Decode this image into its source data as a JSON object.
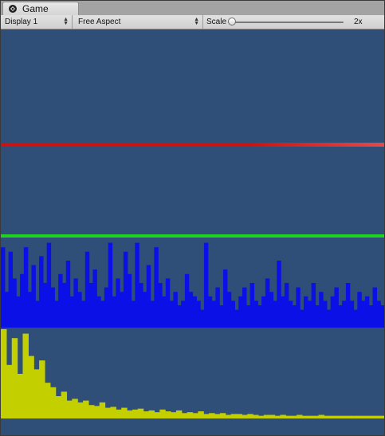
{
  "tab": {
    "title": "Game",
    "icon": "unity-logo-icon"
  },
  "toolbar": {
    "display_value": "Display 1",
    "aspect_value": "Free Aspect",
    "scale_label": "Scale",
    "scale_value": "2x",
    "scale_fraction": 0.0
  },
  "viewport": {
    "background": "#2f4e78",
    "bars": [
      {
        "name": "red",
        "color": "#c81414",
        "color_end": "#e34a4a"
      },
      {
        "name": "green",
        "color": "#1fd21f"
      }
    ],
    "blue_spectrum": {
      "color": "#0a10e6",
      "levels": [
        0.9,
        0.4,
        0.85,
        0.55,
        0.35,
        0.6,
        0.9,
        0.4,
        0.7,
        0.3,
        0.8,
        0.5,
        0.95,
        0.45,
        0.3,
        0.6,
        0.5,
        0.75,
        0.35,
        0.55,
        0.4,
        0.3,
        0.85,
        0.5,
        0.65,
        0.35,
        0.3,
        0.45,
        0.95,
        0.35,
        0.55,
        0.4,
        0.85,
        0.6,
        0.3,
        0.95,
        0.5,
        0.4,
        0.7,
        0.3,
        0.9,
        0.5,
        0.35,
        0.55,
        0.3,
        0.4,
        0.25,
        0.3,
        0.6,
        0.4,
        0.35,
        0.3,
        0.2,
        0.95,
        0.35,
        0.3,
        0.45,
        0.25,
        0.65,
        0.4,
        0.3,
        0.2,
        0.35,
        0.45,
        0.25,
        0.5,
        0.3,
        0.25,
        0.35,
        0.55,
        0.4,
        0.3,
        0.75,
        0.35,
        0.5,
        0.3,
        0.25,
        0.45,
        0.2,
        0.35,
        0.3,
        0.5,
        0.25,
        0.4,
        0.3,
        0.2,
        0.35,
        0.45,
        0.25,
        0.3,
        0.5,
        0.3,
        0.2,
        0.4,
        0.3,
        0.35,
        0.25,
        0.45,
        0.3,
        0.25
      ]
    },
    "yellow_spectrum": {
      "color": "#c4cf00",
      "levels": [
        1.0,
        0.6,
        0.9,
        0.5,
        0.95,
        0.7,
        0.55,
        0.65,
        0.4,
        0.35,
        0.25,
        0.3,
        0.2,
        0.22,
        0.18,
        0.2,
        0.15,
        0.14,
        0.18,
        0.12,
        0.13,
        0.1,
        0.12,
        0.09,
        0.1,
        0.11,
        0.08,
        0.09,
        0.07,
        0.1,
        0.08,
        0.07,
        0.09,
        0.06,
        0.07,
        0.06,
        0.08,
        0.05,
        0.06,
        0.05,
        0.06,
        0.04,
        0.05,
        0.05,
        0.04,
        0.05,
        0.04,
        0.03,
        0.04,
        0.04,
        0.03,
        0.04,
        0.03,
        0.03,
        0.04,
        0.03,
        0.03,
        0.03,
        0.04,
        0.03,
        0.03,
        0.03,
        0.03,
        0.03,
        0.03,
        0.03,
        0.03,
        0.03,
        0.03,
        0.03
      ]
    }
  }
}
